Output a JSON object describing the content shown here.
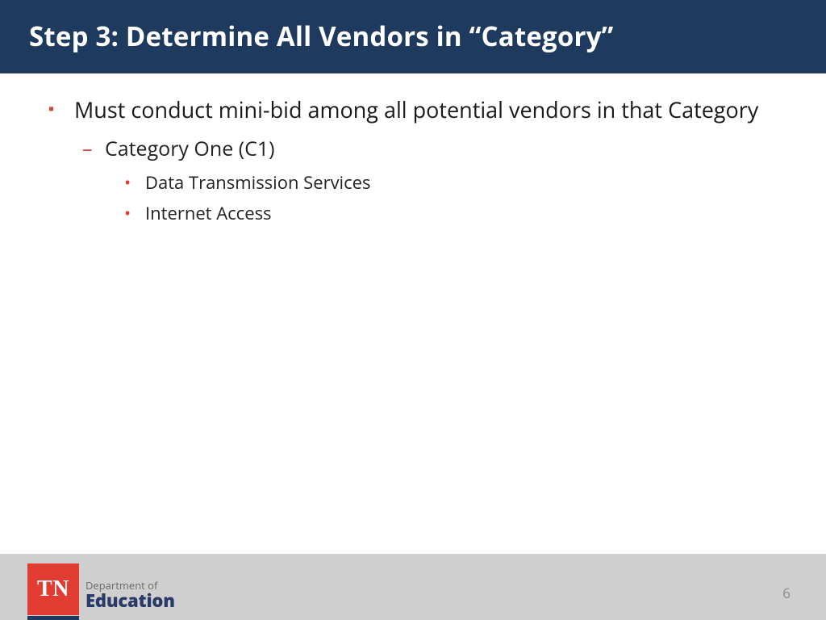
{
  "colors": {
    "header_bg": "#1f3a5f",
    "accent_red": "#d94330",
    "footer_bg": "#cfcfcf",
    "logo_bg": "#e03c31",
    "logo_underline": "#1f3a5f",
    "dept_big": "#2a3a66",
    "page_bg": "#ffffff"
  },
  "header": {
    "title": "Step 3: Determine All Vendors in “Category”"
  },
  "bullets": {
    "lvl1": [
      {
        "text": "Must conduct mini-bid among all potential vendors in that Category",
        "lvl2": [
          {
            "text": "Category One (C1)",
            "lvl3": [
              {
                "text": "Data Transmission Services"
              },
              {
                "text": "Internet Access"
              }
            ]
          }
        ]
      }
    ]
  },
  "footer": {
    "logo_text": "TN",
    "dept_small": "Department of",
    "dept_big": "Education",
    "page_number": "6"
  }
}
